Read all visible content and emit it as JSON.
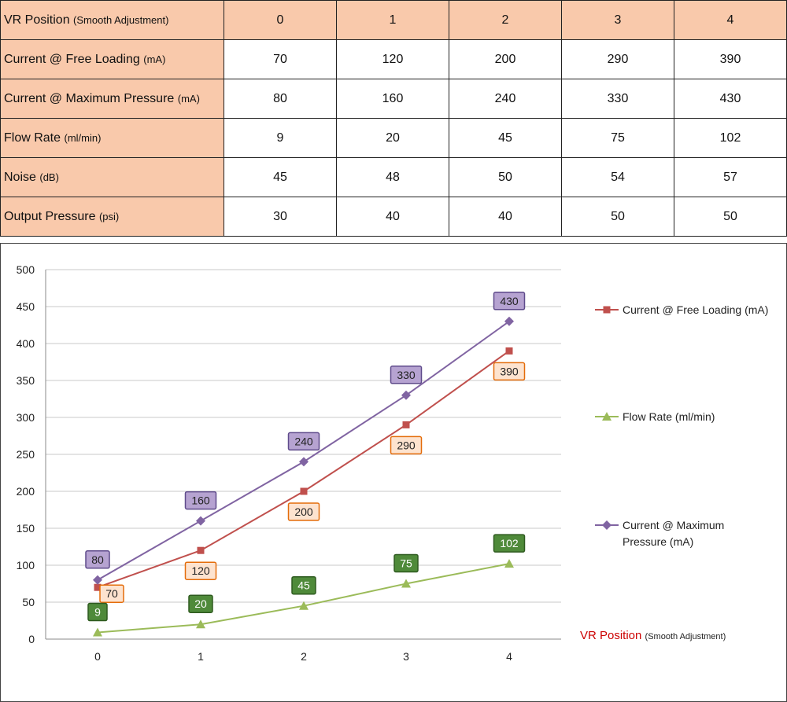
{
  "table": {
    "header": {
      "label": "VR Position",
      "unit": "(Smooth Adjustment)",
      "values": [
        "0",
        "1",
        "2",
        "3",
        "4"
      ]
    },
    "rows": [
      {
        "label": "Current @ Free Loading",
        "unit": "(mA)",
        "values": [
          "70",
          "120",
          "200",
          "290",
          "390"
        ]
      },
      {
        "label": "Current @ Maximum Pressure",
        "unit": "(mA)",
        "values": [
          "80",
          "160",
          "240",
          "330",
          "430"
        ]
      },
      {
        "label": "Flow Rate",
        "unit": "(ml/min)",
        "values": [
          "9",
          "20",
          "45",
          "75",
          "102"
        ]
      },
      {
        "label": "Noise",
        "unit": "(dB)",
        "values": [
          "45",
          "48",
          "50",
          "54",
          "57"
        ]
      },
      {
        "label": "Output Pressure",
        "unit": "(psi)",
        "values": [
          "30",
          "40",
          "40",
          "50",
          "50"
        ]
      }
    ]
  },
  "chart_data": {
    "type": "line",
    "x": [
      0,
      1,
      2,
      3,
      4
    ],
    "xlabel": "VR Position",
    "xlabel_note": "(Smooth Adjustment)",
    "ylim": [
      0,
      500
    ],
    "yticks": [
      0,
      50,
      100,
      150,
      200,
      250,
      300,
      350,
      400,
      450,
      500
    ],
    "grid": "horizontal",
    "legend_position": "right",
    "series": [
      {
        "name": "Current @ Free Loading (mA)",
        "values": [
          70,
          120,
          200,
          290,
          390
        ],
        "color": "#c0504d",
        "marker": "square",
        "label_fill": "#fde3cf",
        "label_stroke": "#e46c0a",
        "label_text": "#222",
        "label_side": "below"
      },
      {
        "name": "Flow Rate (ml/min)",
        "values": [
          9,
          20,
          45,
          75,
          102
        ],
        "color": "#9bbb59",
        "marker": "triangle",
        "label_fill": "#4f8a3a",
        "label_stroke": "#2e5a1f",
        "label_text": "#ffffff",
        "label_side": "above"
      },
      {
        "name": "Current @ Maximum Pressure (mA)",
        "values": [
          80,
          160,
          240,
          330,
          430
        ],
        "color": "#8064a2",
        "marker": "diamond",
        "label_fill": "#b6a3d1",
        "label_stroke": "#5f4b8b",
        "label_text": "#222",
        "label_side": "above"
      }
    ],
    "xlabel_color": "#cc0000"
  }
}
